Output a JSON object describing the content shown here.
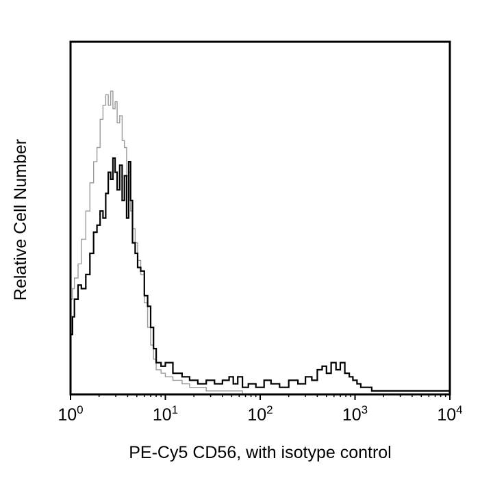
{
  "chart_data": {
    "type": "line",
    "title": "",
    "xlabel": "PE-Cy5 CD56, with isotype control",
    "ylabel": "Relative Cell Number",
    "x_scale": "log",
    "xlim": [
      1,
      10000
    ],
    "ylim": [
      0,
      100
    ],
    "grid": false,
    "legend": "none",
    "x_ticks": [
      {
        "value": 1,
        "base": "10",
        "exp": "0"
      },
      {
        "value": 10,
        "base": "10",
        "exp": "1"
      },
      {
        "value": 100,
        "base": "10",
        "exp": "2"
      },
      {
        "value": 1000,
        "base": "10",
        "exp": "3"
      },
      {
        "value": 10000,
        "base": "10",
        "exp": "4"
      }
    ],
    "series": [
      {
        "color": "#000000",
        "x": [
          1.0,
          1.05,
          1.1,
          1.2,
          1.3,
          1.45,
          1.6,
          1.75,
          1.9,
          2.05,
          2.2,
          2.35,
          2.5,
          2.65,
          2.8,
          2.95,
          3.1,
          3.3,
          3.5,
          3.7,
          3.9,
          4.1,
          4.3,
          4.5,
          4.8,
          5.1,
          5.5,
          6.0,
          6.5,
          7.0,
          7.5,
          8.0,
          9.0,
          10.0,
          12.0,
          15.0,
          18.0,
          22.0,
          27.0,
          33.0,
          40.0,
          47.0,
          52.0,
          58.0,
          65.0,
          75.0,
          90.0,
          110.0,
          130.0,
          160.0,
          200.0,
          250.0,
          300.0,
          350.0,
          400.0,
          450.0,
          500.0,
          560.0,
          630.0,
          700.0,
          780.0,
          870.0,
          950.0,
          1050.0,
          1150.0,
          1300.0,
          1500.0,
          1800.0,
          2200.0,
          3000.0,
          5000.0,
          8000.0,
          10000.0
        ],
        "values": [
          17,
          22,
          27,
          31,
          30,
          34,
          40,
          46,
          48,
          52,
          50,
          57,
          63,
          61,
          67,
          63,
          58,
          65,
          55,
          62,
          50,
          66,
          55,
          43,
          40,
          36,
          35,
          28,
          25,
          19,
          13,
          9,
          8,
          9,
          6,
          5,
          4,
          3,
          4,
          3,
          4,
          5,
          3,
          5,
          2,
          3,
          2,
          4,
          3,
          2,
          4,
          3,
          5,
          4,
          7,
          8,
          6,
          9,
          7,
          9,
          6,
          5,
          4,
          3,
          2,
          2,
          1,
          1,
          1,
          1,
          1,
          1,
          0
        ]
      },
      {
        "color": "#9a9a9a",
        "x": [
          1.0,
          1.05,
          1.1,
          1.2,
          1.3,
          1.45,
          1.6,
          1.75,
          1.9,
          2.05,
          2.2,
          2.35,
          2.5,
          2.65,
          2.8,
          2.95,
          3.1,
          3.3,
          3.5,
          3.7,
          3.9,
          4.1,
          4.3,
          4.5,
          4.8,
          5.1,
          5.5,
          6.0,
          6.5,
          7.0,
          7.5,
          8.0,
          9.0,
          10.0,
          12.0,
          15.0,
          18.0,
          22.0,
          27.0,
          33.0,
          40.0,
          50.0,
          65.0,
          80.0,
          100.0
        ],
        "values": [
          27,
          30,
          33,
          37,
          44,
          52,
          60,
          66,
          70,
          78,
          82,
          85,
          82,
          86,
          81,
          83,
          77,
          79,
          72,
          70,
          62,
          63,
          52,
          47,
          43,
          38,
          34,
          26,
          19,
          14,
          10,
          7,
          6,
          5,
          4,
          3,
          2,
          2,
          1,
          1,
          1,
          1,
          0,
          0,
          0
        ]
      }
    ]
  }
}
